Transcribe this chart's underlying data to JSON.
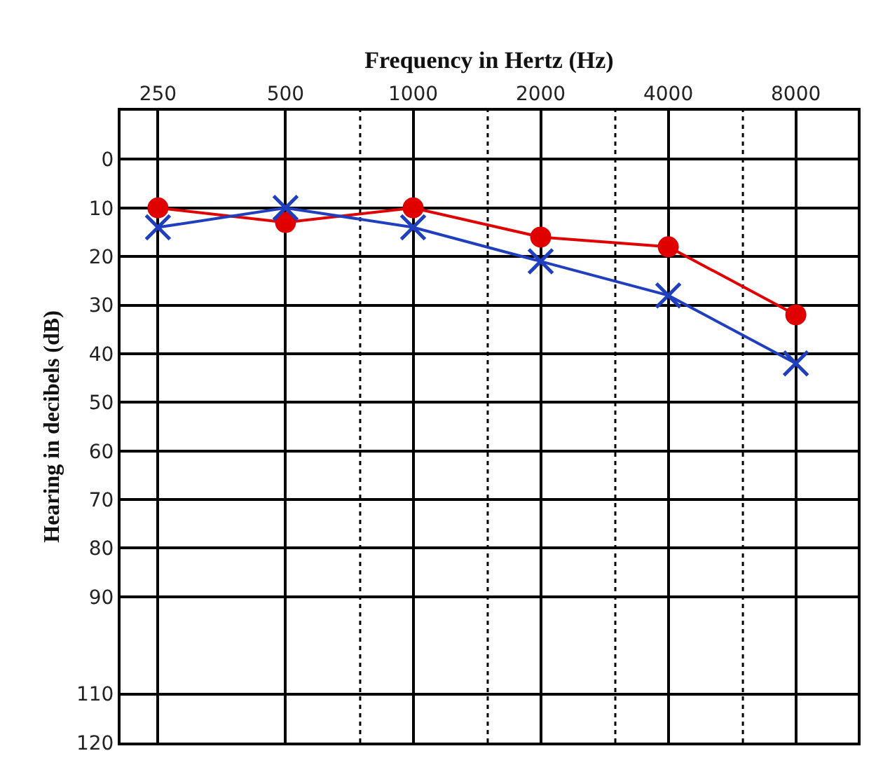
{
  "chart_data": {
    "type": "line",
    "xlabel": "Frequency in Hertz (Hz)",
    "ylabel": "Hearing in decibels (dB)",
    "x": [
      250,
      500,
      1000,
      2000,
      4000,
      8000
    ],
    "log": "x",
    "xlim": [
      204,
      11200
    ],
    "xticks": [
      250,
      500,
      1000,
      2000,
      4000,
      8000
    ],
    "ylim": [
      120,
      -10
    ],
    "yticks": [
      {
        "value": -10,
        "label": null
      },
      0,
      10,
      20,
      30,
      40,
      50,
      60,
      70,
      80,
      90,
      110,
      120
    ],
    "grid": true,
    "line_style": "solid",
    "series": [
      {
        "color": "#e00000",
        "marker": "circle",
        "values": [
          10,
          13,
          10,
          16,
          18,
          32
        ]
      },
      {
        "color": "#1f3fbf",
        "marker": "cross",
        "values": [
          14,
          10,
          14,
          21,
          28,
          42
        ]
      }
    ],
    "ref_lines": [
      {
        "axis": "x",
        "value": 750,
        "label": null,
        "color": "#000000",
        "line_style": "dotted"
      },
      {
        "axis": "x",
        "value": 1500,
        "label": null,
        "color": "#000000",
        "line_style": "dotted"
      },
      {
        "axis": "x",
        "value": 3000,
        "label": null,
        "color": "#000000",
        "line_style": "dotted"
      },
      {
        "axis": "x",
        "value": 6000,
        "label": null,
        "color": "#000000",
        "line_style": "dotted"
      }
    ]
  }
}
